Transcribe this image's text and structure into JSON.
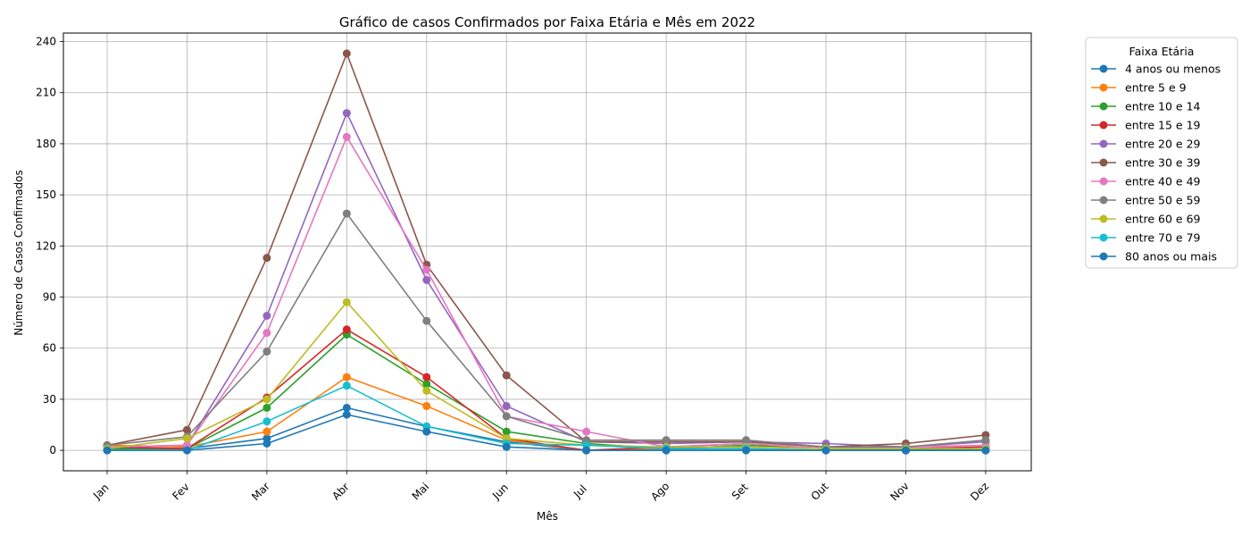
{
  "chart_data": {
    "type": "line",
    "title": "Gráfico de casos Confirmados por Faixa Etária e Mês em 2022",
    "xlabel": "Mês",
    "ylabel": "Número de Casos Confirmados",
    "categories": [
      "Jan",
      "Fev",
      "Mar",
      "Abr",
      "Mai",
      "Jun",
      "Jul",
      "Ago",
      "Set",
      "Out",
      "Nov",
      "Dez"
    ],
    "yticks": [
      0,
      30,
      60,
      90,
      120,
      150,
      180,
      210,
      240
    ],
    "ylim": [
      -12,
      245
    ],
    "grid": true,
    "legend_title": "Faixa Etária",
    "legend_position": "outside-top-right",
    "series": [
      {
        "name": "4 anos ou menos",
        "color": "#1f77b4",
        "values": [
          1,
          1,
          7,
          25,
          14,
          5,
          0,
          0,
          0,
          0,
          0,
          0
        ]
      },
      {
        "name": "entre 5 e 9",
        "color": "#ff7f0e",
        "values": [
          3,
          2,
          11,
          43,
          26,
          6,
          0,
          1,
          1,
          0,
          0,
          1
        ]
      },
      {
        "name": "entre 10 e 14",
        "color": "#2ca02c",
        "values": [
          1,
          1,
          25,
          68,
          39,
          11,
          4,
          1,
          3,
          1,
          0,
          1
        ]
      },
      {
        "name": "entre 15 e 19",
        "color": "#d62728",
        "values": [
          2,
          1,
          31,
          71,
          43,
          7,
          0,
          2,
          4,
          1,
          1,
          2
        ]
      },
      {
        "name": "entre 20 e 29",
        "color": "#9467bd",
        "values": [
          2,
          3,
          79,
          198,
          100,
          26,
          5,
          4,
          5,
          4,
          2,
          5
        ]
      },
      {
        "name": "entre 30 e 39",
        "color": "#8c564b",
        "values": [
          3,
          12,
          113,
          233,
          109,
          44,
          5,
          5,
          5,
          2,
          4,
          9
        ]
      },
      {
        "name": "entre 40 e 49",
        "color": "#e377c2",
        "values": [
          2,
          3,
          69,
          184,
          106,
          20,
          11,
          2,
          4,
          1,
          2,
          3
        ]
      },
      {
        "name": "entre 50 e 59",
        "color": "#7f7f7f",
        "values": [
          3,
          8,
          58,
          139,
          76,
          20,
          6,
          6,
          6,
          2,
          2,
          6
        ]
      },
      {
        "name": "entre 60 e 69",
        "color": "#bcbd22",
        "values": [
          1,
          7,
          30,
          87,
          35,
          7,
          3,
          2,
          2,
          1,
          1,
          1
        ]
      },
      {
        "name": "entre 70 e 79",
        "color": "#17becf",
        "values": [
          0,
          0,
          17,
          38,
          14,
          4,
          3,
          1,
          1,
          0,
          0,
          0
        ]
      },
      {
        "name": "80 anos ou mais",
        "color": "#1f77b4",
        "values": [
          0,
          0,
          4,
          21,
          11,
          2,
          0,
          0,
          0,
          0,
          0,
          0
        ]
      }
    ]
  }
}
